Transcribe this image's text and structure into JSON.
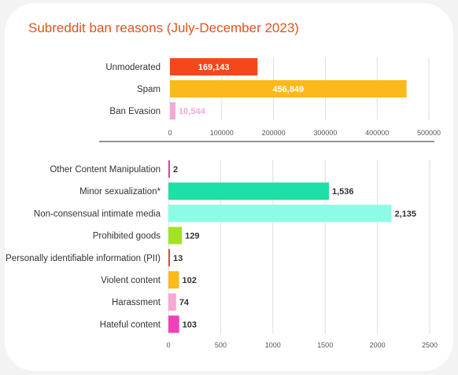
{
  "title": "Subreddit ban reasons (July-December 2023)",
  "chart_data": [
    {
      "type": "bar",
      "orientation": "horizontal",
      "categories": [
        "Unmoderated",
        "Spam",
        "Ban Evasion"
      ],
      "values": [
        169143,
        456849,
        10544
      ],
      "value_labels": [
        "169,143",
        "456,849",
        "10,544"
      ],
      "colors": [
        "#f2481a",
        "#fbb91b",
        "#f3a8d6"
      ],
      "label_colors": [
        "#ffffff",
        "#ffffff",
        "#f3a8d6"
      ],
      "label_inside": [
        true,
        true,
        false
      ],
      "xlim": [
        0,
        500000
      ],
      "xticks": [
        0,
        100000,
        200000,
        300000,
        400000,
        500000
      ],
      "xtick_labels": [
        "0",
        "100000",
        "200000",
        "300000",
        "400000",
        "500000"
      ],
      "grid": true
    },
    {
      "type": "bar",
      "orientation": "horizontal",
      "categories": [
        "Other Content Manipulation",
        "Minor sexualization*",
        "Non-consensual intimate media",
        "Prohibited goods",
        "Personally identifiable information (PII)",
        "Violent content",
        "Harassment",
        "Hateful content"
      ],
      "values": [
        2,
        1536,
        2135,
        129,
        13,
        102,
        74,
        103
      ],
      "value_labels": [
        "2",
        "1,536",
        "2,135",
        "129",
        "13",
        "102",
        "74",
        "103"
      ],
      "colors": [
        "#ee3aa6",
        "#1de0a7",
        "#8efbe7",
        "#a3e228",
        "#e0531f",
        "#fbb91b",
        "#f6a9d4",
        "#ef42b9"
      ],
      "xlim": [
        0,
        2500
      ],
      "xticks": [
        0,
        500,
        1000,
        1500,
        2000,
        2500
      ],
      "xtick_labels": [
        "0",
        "500",
        "1000",
        "1500",
        "2000",
        "2500"
      ],
      "grid": true
    }
  ]
}
